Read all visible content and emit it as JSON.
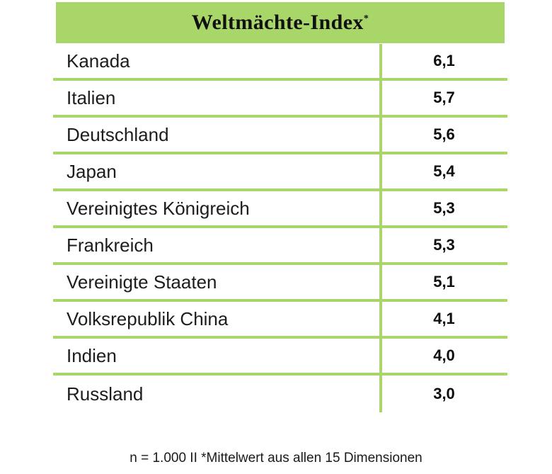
{
  "header": {
    "title": "Weltmächte-Index",
    "footnote_marker": "*"
  },
  "table": {
    "rows": [
      {
        "country": "Kanada",
        "value": "6,1"
      },
      {
        "country": "Italien",
        "value": "5,7"
      },
      {
        "country": "Deutschland",
        "value": "5,6"
      },
      {
        "country": "Japan",
        "value": "5,4"
      },
      {
        "country": "Vereinigtes Königreich",
        "value": "5,3"
      },
      {
        "country": "Frankreich",
        "value": "5,3"
      },
      {
        "country": "Vereinigte Staaten",
        "value": "5,1"
      },
      {
        "country": "Volksrepublik China",
        "value": "4,1"
      },
      {
        "country": "Indien",
        "value": "4,0"
      },
      {
        "country": "Russland",
        "value": "3,0"
      }
    ]
  },
  "footer": {
    "note": "n = 1.000 II *Mittelwert aus allen 15 Dimensionen"
  },
  "colors": {
    "accent_green": "#a9d668",
    "text_dark": "#1d1d1d",
    "background": "#ffffff"
  },
  "chart_data": {
    "type": "table",
    "title": "Weltmächte-Index*",
    "categories": [
      "Kanada",
      "Italien",
      "Deutschland",
      "Japan",
      "Vereinigtes Königreich",
      "Frankreich",
      "Vereinigte Staaten",
      "Volksrepublik China",
      "Indien",
      "Russland"
    ],
    "values": [
      6.1,
      5.7,
      5.6,
      5.4,
      5.3,
      5.3,
      5.1,
      4.1,
      4.0,
      3.0
    ],
    "value_format": "decimal-comma",
    "value_range_implied": [
      0,
      10
    ],
    "note": "n = 1.000 II *Mittelwert aus allen 15 Dimensionen",
    "layout": {
      "header_band": true,
      "row_separators": true,
      "column_divider": true,
      "grid": "partial"
    }
  }
}
